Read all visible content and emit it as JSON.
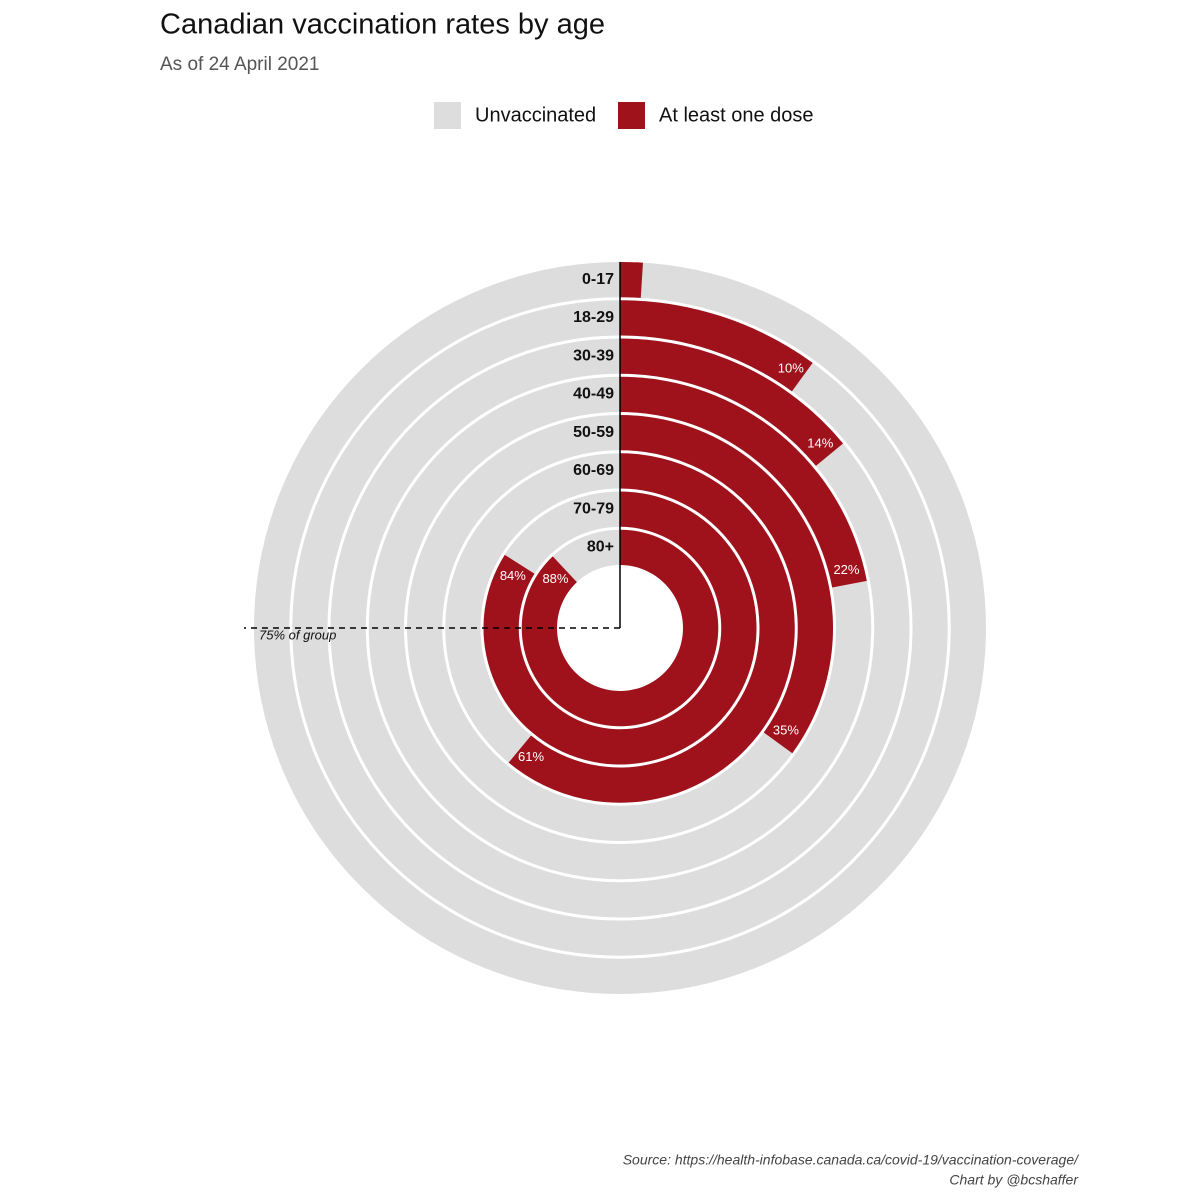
{
  "chart_data": {
    "type": "radial-bar",
    "title": "Canadian vaccination rates by age",
    "subtitle": "As of 24 April 2021",
    "categories": [
      "0-17",
      "18-29",
      "30-39",
      "40-49",
      "50-59",
      "60-69",
      "70-79",
      "80+"
    ],
    "ylim": [
      0,
      100
    ],
    "series": [
      {
        "name": "Unvaccinated",
        "color": "#dddddd"
      },
      {
        "name": "At least one dose",
        "color": "#a0121b",
        "values": [
          1,
          10,
          14,
          22,
          35,
          61,
          84,
          88
        ],
        "value_labels": [
          null,
          "10%",
          "14%",
          "22%",
          "35%",
          "61%",
          "84%",
          "88%"
        ]
      }
    ],
    "reference": {
      "value": 75,
      "label": "75% of group"
    },
    "source": "Source: https://health-infobase.canada.ca/covid-19/vaccination-coverage/",
    "credit": "Chart by @bcshaffer"
  }
}
